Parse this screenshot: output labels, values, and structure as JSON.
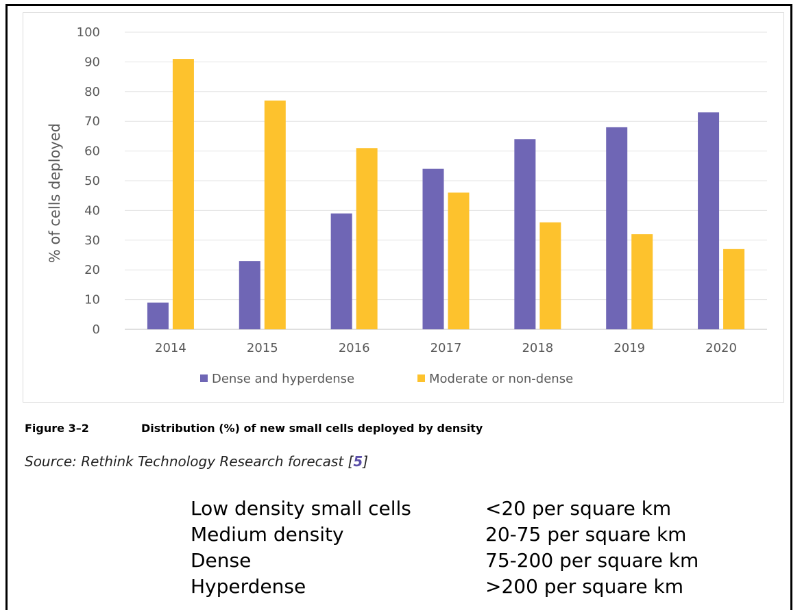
{
  "chart_data": {
    "type": "bar",
    "categories": [
      "2014",
      "2015",
      "2016",
      "2017",
      "2018",
      "2019",
      "2020"
    ],
    "series": [
      {
        "name": "Dense and hyperdense",
        "values": [
          9,
          23,
          39,
          54,
          64,
          68,
          73
        ],
        "color": "#6f66b5"
      },
      {
        "name": "Moderate or non-dense",
        "values": [
          91,
          77,
          61,
          46,
          36,
          32,
          27
        ],
        "color": "#fdc22d"
      }
    ],
    "ylabel": "% of cells deployed",
    "ylim": [
      0,
      100
    ],
    "yticks": [
      0,
      10,
      20,
      30,
      40,
      50,
      60,
      70,
      80,
      90,
      100
    ],
    "grid": true,
    "legend": "bottom"
  },
  "caption": {
    "figure_label": "Figure 3–2",
    "text": "Distribution (%) of new small cells deployed by density"
  },
  "source": {
    "prefix": "Source: Rethink Technology Research forecast [",
    "ref": "5",
    "suffix": "]"
  },
  "density_table": [
    {
      "category": "Low density small cells",
      "range": "<20 per square km"
    },
    {
      "category": "Medium density",
      "range": "20-75 per square km"
    },
    {
      "category": "Dense",
      "range": "75-200 per square km"
    },
    {
      "category": "Hyperdense",
      "range": ">200 per square km"
    }
  ]
}
